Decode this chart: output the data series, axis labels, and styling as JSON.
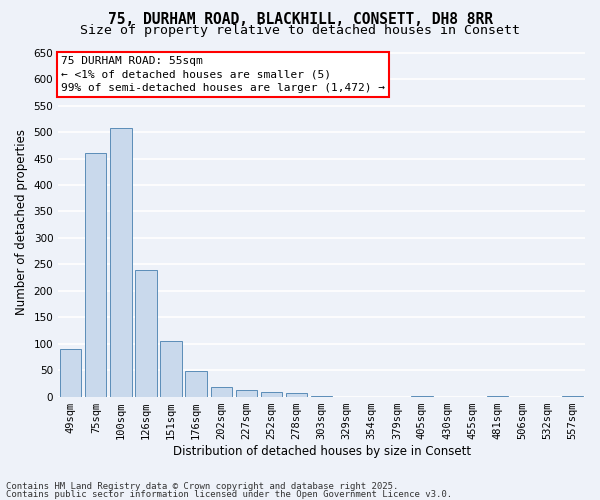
{
  "title_line1": "75, DURHAM ROAD, BLACKHILL, CONSETT, DH8 8RR",
  "title_line2": "Size of property relative to detached houses in Consett",
  "xlabel": "Distribution of detached houses by size in Consett",
  "ylabel": "Number of detached properties",
  "categories": [
    "49sqm",
    "75sqm",
    "100sqm",
    "126sqm",
    "151sqm",
    "176sqm",
    "202sqm",
    "227sqm",
    "252sqm",
    "278sqm",
    "303sqm",
    "329sqm",
    "354sqm",
    "379sqm",
    "405sqm",
    "430sqm",
    "455sqm",
    "481sqm",
    "506sqm",
    "532sqm",
    "557sqm"
  ],
  "values": [
    90,
    460,
    507,
    240,
    105,
    48,
    18,
    13,
    9,
    6,
    1,
    0,
    0,
    0,
    1,
    0,
    0,
    1,
    0,
    0,
    1
  ],
  "bar_color": "#c9d9ec",
  "bar_edge_color": "#5b8db8",
  "annotation_box_text": "75 DURHAM ROAD: 55sqm\n← <1% of detached houses are smaller (5)\n99% of semi-detached houses are larger (1,472) →",
  "ylim": [
    0,
    660
  ],
  "yticks": [
    0,
    50,
    100,
    150,
    200,
    250,
    300,
    350,
    400,
    450,
    500,
    550,
    600,
    650
  ],
  "footnote_line1": "Contains HM Land Registry data © Crown copyright and database right 2025.",
  "footnote_line2": "Contains public sector information licensed under the Open Government Licence v3.0.",
  "background_color": "#eef2f9",
  "grid_color": "#ffffff",
  "title1_fontsize": 10.5,
  "title2_fontsize": 9.5,
  "axis_label_fontsize": 8.5,
  "tick_fontsize": 7.5,
  "annotation_fontsize": 8,
  "footnote_fontsize": 6.5
}
